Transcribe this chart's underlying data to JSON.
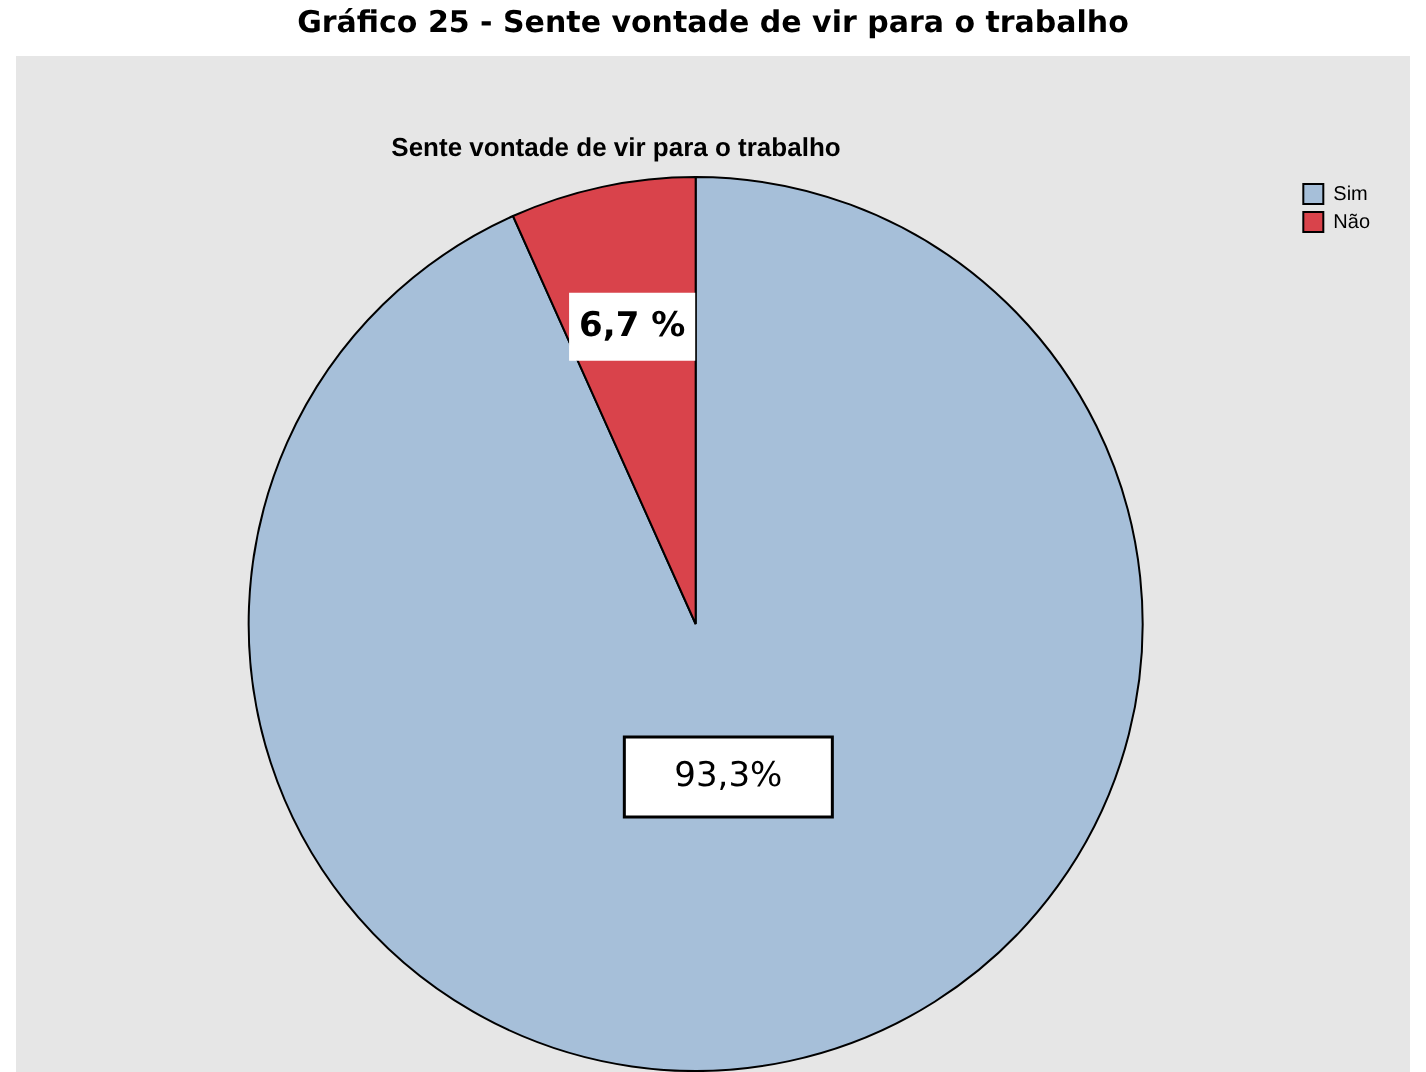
{
  "chart_data": {
    "type": "pie",
    "title": "Gráfico 25 - Sente vontade de vir para o trabalho",
    "subtitle": "Sente vontade de vir para o trabalho",
    "categories": [
      "Sim",
      "Não"
    ],
    "values": [
      93.3,
      6.7
    ],
    "colors": [
      "#a6bfd9",
      "#d9434b"
    ],
    "value_labels": [
      "93,3%",
      "6,7 %"
    ],
    "legend": "top right"
  }
}
